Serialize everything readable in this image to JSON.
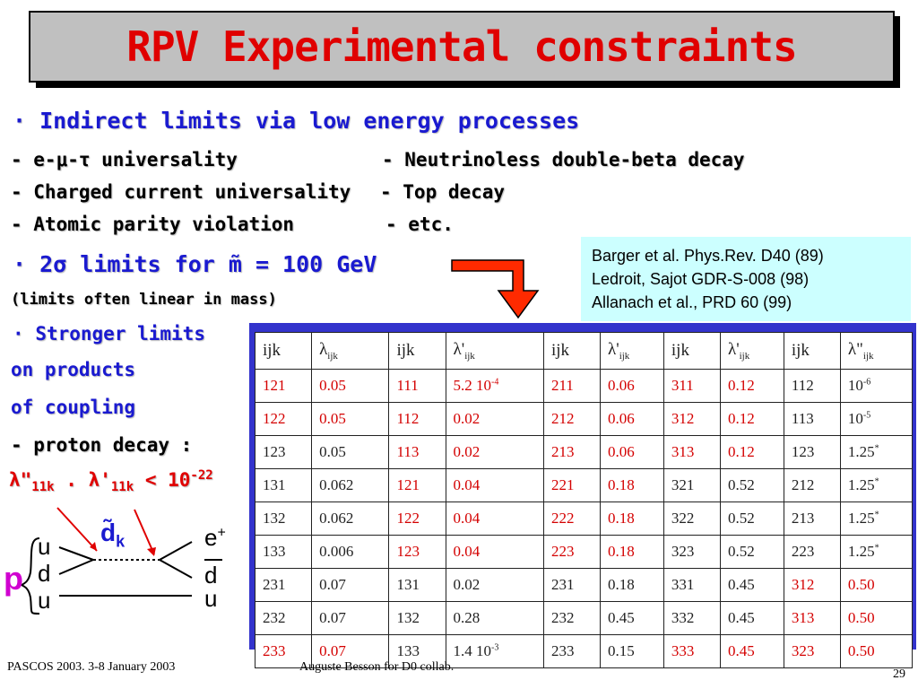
{
  "title": "RPV Experimental constraints",
  "bullets": {
    "indirect": "Indirect limits via low energy processes",
    "sigma_limits": "2σ limits for m̃ = 100 GeV",
    "linear_note": "(limits often linear in mass)",
    "stronger": "Stronger limits",
    "on_products": "on products",
    "of_coupling": "of coupling",
    "proton_decay": "- proton decay :"
  },
  "processes": {
    "left": [
      "-   e-μ-τ universality",
      "- Charged current universality",
      "- Atomic parity violation"
    ],
    "right": [
      "- Neutrinoless double-beta decay",
      "- Top decay",
      "- etc."
    ]
  },
  "proton_limit": {
    "lambda1": "λ\"",
    "sub1": "11k",
    "dot": ".",
    "lambda2": "λ'",
    "sub2": "11k",
    "lt": "< 10",
    "exp": "-22"
  },
  "references": [
    "Barger et al. Phys.Rev. D40 (89)",
    "Ledroit, Sajot GDR-S-008 (98)",
    "Allanach et al., PRD 60 (99)"
  ],
  "table": {
    "headers": [
      {
        "sym": "ijk",
        "sub": ""
      },
      {
        "sym": "λ",
        "sub": "ijk"
      },
      {
        "sym": "ijk",
        "sub": ""
      },
      {
        "sym": "λ'",
        "sub": "ijk"
      },
      {
        "sym": "ijk",
        "sub": ""
      },
      {
        "sym": "λ'",
        "sub": "ijk"
      },
      {
        "sym": "ijk",
        "sub": ""
      },
      {
        "sym": "λ'",
        "sub": "ijk"
      },
      {
        "sym": "ijk",
        "sub": ""
      },
      {
        "sym": "λ\"",
        "sub": "ijk"
      }
    ],
    "rows": [
      [
        [
          "121",
          "r"
        ],
        [
          "0.05",
          "r"
        ],
        [
          "111",
          "r"
        ],
        [
          "5.2 10",
          "r",
          "-4"
        ],
        [
          "211",
          "r"
        ],
        [
          "0.06",
          "r"
        ],
        [
          "311",
          "r"
        ],
        [
          "0.12",
          "r"
        ],
        [
          "112",
          "k"
        ],
        [
          "10",
          "k",
          "-6"
        ]
      ],
      [
        [
          "122",
          "r"
        ],
        [
          "0.05",
          "r"
        ],
        [
          "112",
          "r"
        ],
        [
          "0.02",
          "r"
        ],
        [
          "212",
          "r"
        ],
        [
          "0.06",
          "r"
        ],
        [
          "312",
          "r"
        ],
        [
          "0.12",
          "r"
        ],
        [
          "113",
          "k"
        ],
        [
          "10",
          "k",
          "-5"
        ]
      ],
      [
        [
          "123",
          "k"
        ],
        [
          "0.05",
          "k"
        ],
        [
          "113",
          "r"
        ],
        [
          "0.02",
          "r"
        ],
        [
          "213",
          "r"
        ],
        [
          "0.06",
          "r"
        ],
        [
          "313",
          "r"
        ],
        [
          "0.12",
          "r"
        ],
        [
          "123",
          "k"
        ],
        [
          "1.25",
          "k",
          "*"
        ]
      ],
      [
        [
          "131",
          "k"
        ],
        [
          "0.062",
          "k"
        ],
        [
          "121",
          "r"
        ],
        [
          "0.04",
          "r"
        ],
        [
          "221",
          "r"
        ],
        [
          "0.18",
          "r"
        ],
        [
          "321",
          "k"
        ],
        [
          "0.52",
          "k"
        ],
        [
          "212",
          "k"
        ],
        [
          "1.25",
          "k",
          "*"
        ]
      ],
      [
        [
          "132",
          "k"
        ],
        [
          "0.062",
          "k"
        ],
        [
          "122",
          "r"
        ],
        [
          "0.04",
          "r"
        ],
        [
          "222",
          "r"
        ],
        [
          "0.18",
          "r"
        ],
        [
          "322",
          "k"
        ],
        [
          "0.52",
          "k"
        ],
        [
          "213",
          "k"
        ],
        [
          "1.25",
          "k",
          "*"
        ]
      ],
      [
        [
          "133",
          "k"
        ],
        [
          "0.006",
          "k"
        ],
        [
          "123",
          "r"
        ],
        [
          "0.04",
          "r"
        ],
        [
          "223",
          "r"
        ],
        [
          "0.18",
          "r"
        ],
        [
          "323",
          "k"
        ],
        [
          "0.52",
          "k"
        ],
        [
          "223",
          "k"
        ],
        [
          "1.25",
          "k",
          "*"
        ]
      ],
      [
        [
          "231",
          "k"
        ],
        [
          "0.07",
          "k"
        ],
        [
          "131",
          "k"
        ],
        [
          "0.02",
          "k"
        ],
        [
          "231",
          "k"
        ],
        [
          "0.18",
          "k"
        ],
        [
          "331",
          "k"
        ],
        [
          "0.45",
          "k"
        ],
        [
          "312",
          "r"
        ],
        [
          "0.50",
          "r"
        ]
      ],
      [
        [
          "232",
          "k"
        ],
        [
          "0.07",
          "k"
        ],
        [
          "132",
          "k"
        ],
        [
          "0.28",
          "k"
        ],
        [
          "232",
          "k"
        ],
        [
          "0.45",
          "k"
        ],
        [
          "332",
          "k"
        ],
        [
          "0.45",
          "k"
        ],
        [
          "313",
          "r"
        ],
        [
          "0.50",
          "r"
        ]
      ],
      [
        [
          "233",
          "r"
        ],
        [
          "0.07",
          "r"
        ],
        [
          "133",
          "k"
        ],
        [
          "1.4 10",
          "k",
          "-3"
        ],
        [
          "233",
          "k"
        ],
        [
          "0.15",
          "k"
        ],
        [
          "333",
          "r"
        ],
        [
          "0.45",
          "r"
        ],
        [
          "323",
          "r"
        ],
        [
          "0.50",
          "r"
        ]
      ]
    ]
  },
  "diagram": {
    "proton": "p",
    "quarks_in": [
      "u",
      "d",
      "u"
    ],
    "squark": "d̃",
    "squark_sub": "k",
    "out_top": "e",
    "out_top_sup": "+",
    "out_mid": "d",
    "out_bot": "u"
  },
  "footer": {
    "left": "PASCOS 2003. 3-8 January 2003",
    "center": "Auguste Besson for D0 collab.",
    "page": "29"
  },
  "colors": {
    "title_red": "#e00000",
    "bullet_blue": "#1a1ad0",
    "ref_bg": "#ccffff",
    "table_frame": "#3333cc"
  }
}
